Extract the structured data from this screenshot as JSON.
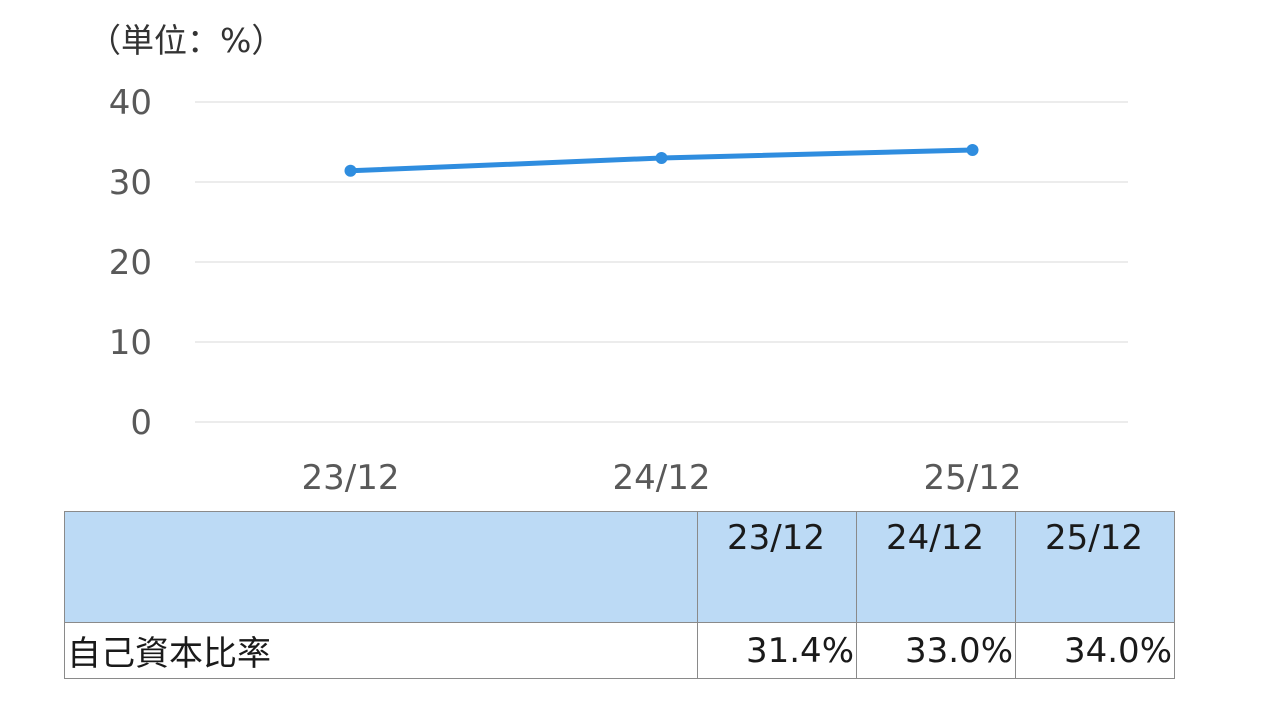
{
  "chart_data": {
    "type": "line",
    "unit_label": "（単位：%）",
    "categories": [
      "23/12",
      "24/12",
      "25/12"
    ],
    "series": [
      {
        "values": [
          31.4,
          33.0,
          34.0
        ]
      }
    ],
    "yticks": [
      "0",
      "10",
      "20",
      "30",
      "40"
    ],
    "ylim": [
      0,
      40
    ],
    "grid": true,
    "colors": {
      "line": "#2f8ddf",
      "grid": "#d9d9d9",
      "tick": "#595959"
    }
  },
  "table": {
    "headers": [
      "",
      "23/12",
      "24/12",
      "25/12"
    ],
    "rows": [
      {
        "label": "自己資本比率",
        "values": [
          "31.4%",
          "33.0%",
          "34.0%"
        ]
      }
    ]
  }
}
